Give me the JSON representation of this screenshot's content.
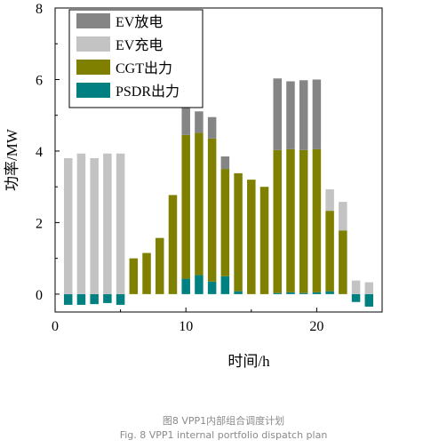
{
  "chart_data": {
    "type": "bar",
    "stacked": true,
    "xlabel": "时间/h",
    "ylabel": "功率/MW",
    "xlim": [
      0,
      25
    ],
    "ylim": [
      -0.5,
      8
    ],
    "x_ticks": [
      0,
      10,
      20
    ],
    "x_tick_labels": [
      "0",
      "10",
      "20"
    ],
    "y_ticks": [
      0,
      2,
      4,
      6,
      8
    ],
    "y_tick_labels": [
      "0",
      "2",
      "4",
      "6",
      "8"
    ],
    "grid": false,
    "legend_position": "top-left",
    "x": [
      1,
      2,
      3,
      4,
      5,
      6,
      7,
      8,
      9,
      10,
      11,
      12,
      13,
      14,
      15,
      16,
      17,
      18,
      19,
      20,
      21,
      22,
      23,
      24
    ],
    "series": [
      {
        "name": "EV放电",
        "color": "#858585",
        "values": [
          0,
          0,
          0,
          0,
          0,
          0,
          0,
          0,
          0,
          0.8,
          0.6,
          0.6,
          0.35,
          0,
          0,
          0,
          2,
          1.9,
          1.95,
          1.95,
          0,
          0,
          0,
          0
        ]
      },
      {
        "name": "EV充电",
        "color": "#c3c3c3",
        "values": [
          3.8,
          3.93,
          3.8,
          3.93,
          3.93,
          0,
          0,
          0,
          0,
          0,
          0,
          0,
          0,
          0,
          0,
          0,
          0,
          0,
          0,
          0,
          0.6,
          0.8,
          0.38,
          0.33
        ]
      },
      {
        "name": "CGT出力",
        "color": "#808000",
        "values": [
          0,
          0,
          0,
          0,
          0,
          1,
          1.15,
          1.57,
          2.77,
          4.02,
          3.98,
          4.0,
          3.0,
          3.3,
          3.2,
          3.0,
          4.0,
          4.0,
          4.0,
          4.0,
          2.25,
          1.78,
          0,
          0
        ]
      },
      {
        "name": "PSDR出力",
        "color": "#008080",
        "values": [
          -0.3,
          -0.3,
          -0.28,
          -0.25,
          -0.3,
          0,
          0,
          0,
          0,
          0.43,
          0.53,
          0.35,
          0.5,
          0.08,
          0,
          0,
          0.03,
          0.05,
          0.03,
          0.05,
          0.08,
          0,
          -0.22,
          -0.35
        ]
      }
    ]
  },
  "caption": {
    "zh": "图8 VPP1内部组合调度计划",
    "en": "Fig. 8 VPP1 internal portfolio dispatch plan"
  }
}
